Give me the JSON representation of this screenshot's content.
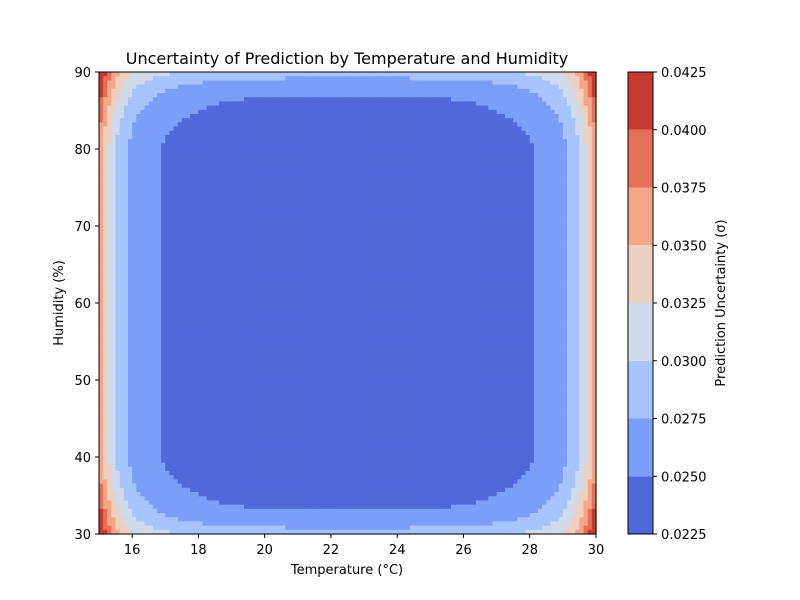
{
  "chart_data": {
    "type": "heatmap",
    "subtype": "filled-contour",
    "title": "Uncertainty of Prediction by Temperature and Humidity",
    "xlabel": "Temperature (°C)",
    "ylabel": "Humidity (%)",
    "xlim": [
      15,
      30
    ],
    "ylim": [
      30,
      90
    ],
    "xticks": [
      16,
      18,
      20,
      22,
      24,
      26,
      28,
      30
    ],
    "yticks": [
      30,
      40,
      50,
      60,
      70,
      80,
      90
    ],
    "colorbar": {
      "label": "Prediction Uncertainty (σ)",
      "levels": [
        0.0225,
        0.025,
        0.0275,
        0.03,
        0.0325,
        0.035,
        0.0375,
        0.04,
        0.0425
      ],
      "tick_labels": [
        "0.0225",
        "0.0250",
        "0.0275",
        "0.0300",
        "0.0325",
        "0.0350",
        "0.0375",
        "0.0400",
        "0.0425"
      ],
      "colors": [
        "#4f69d9",
        "#7b9ff9",
        "#a6c4fe",
        "#cfdaeb",
        "#eed0c0",
        "#f6a688",
        "#e57058",
        "#c73a32"
      ]
    },
    "model": {
      "description_values": {
        "min_sigma_center": 0.0235,
        "max_sigma_corner": 0.0415,
        "temperature_center": 22.5,
        "humidity_peak_levels": [
          33,
          87
        ]
      }
    },
    "grid": false,
    "colormap": "coolwarm"
  }
}
